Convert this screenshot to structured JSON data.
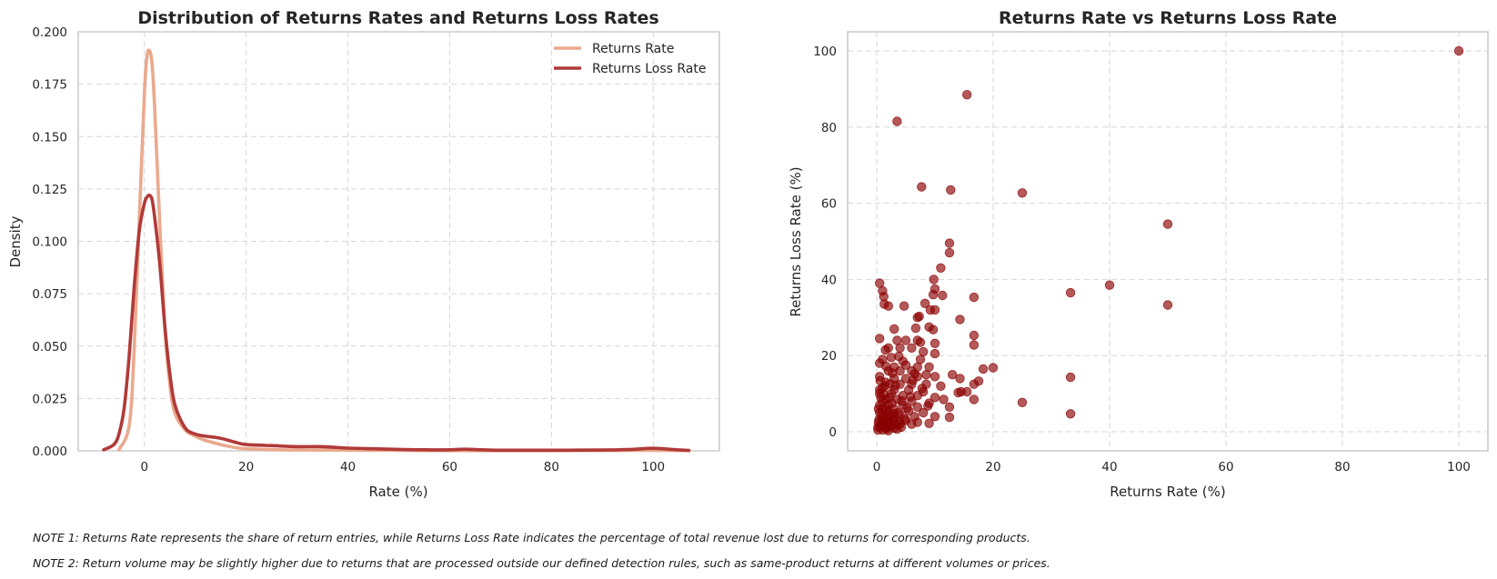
{
  "colors": {
    "returns_rate": "#eaa98e",
    "returns_loss_rate": "#b03a38",
    "scatter_point": "#8b0000",
    "grid": "#d6d6d6",
    "axes_edge": "#cccccc"
  },
  "notes": [
    "NOTE 1: Returns Rate represents the share of return entries, while Returns Loss Rate indicates the percentage of total revenue lost due to returns for corresponding products.",
    "NOTE 2: Return volume may be slightly higher due to returns that are processed outside our defined detection rules, such as same-product returns at different volumes or prices."
  ],
  "chart_data": [
    {
      "type": "line",
      "subtype": "kde",
      "title": "Distribution of Returns Rates and Returns Loss Rates",
      "xlabel": "Rate (%)",
      "ylabel": "Density",
      "xlim": [
        -13,
        113
      ],
      "ylim": [
        0,
        0.2
      ],
      "xticks": [
        0,
        20,
        40,
        60,
        80,
        100
      ],
      "xtick_labels": [
        "0",
        "20",
        "40",
        "60",
        "80",
        "100"
      ],
      "yticks": [
        0,
        0.025,
        0.05,
        0.075,
        0.1,
        0.125,
        0.15,
        0.175,
        0.2
      ],
      "ytick_labels": [
        "0.000",
        "0.025",
        "0.050",
        "0.075",
        "0.100",
        "0.125",
        "0.150",
        "0.175",
        "0.200"
      ],
      "grid": true,
      "legend": "upper-right",
      "series": [
        {
          "name": "Returns Rate",
          "color": "#eaa98e",
          "x": [
            -5,
            -3,
            -2,
            -1,
            0,
            0.5,
            1,
            1.5,
            2,
            3,
            4,
            5,
            6,
            8,
            10,
            12,
            15,
            18,
            20,
            25,
            30,
            40,
            50,
            60,
            80,
            100,
            107
          ],
          "y": [
            0.0005,
            0.012,
            0.048,
            0.11,
            0.17,
            0.188,
            0.191,
            0.185,
            0.165,
            0.11,
            0.06,
            0.032,
            0.018,
            0.01,
            0.007,
            0.005,
            0.003,
            0.0015,
            0.001,
            0.0006,
            0.0004,
            0.0003,
            0.0002,
            0.0001,
            0.0001,
            0.0002,
            0.0001
          ]
        },
        {
          "name": "Returns Loss Rate",
          "color": "#b03a38",
          "x": [
            -8,
            -6,
            -5,
            -4,
            -3,
            -2,
            -1,
            0,
            0.5,
            1,
            1.5,
            2,
            3,
            4,
            5,
            6,
            8,
            10,
            12,
            15,
            18,
            20,
            25,
            30,
            35,
            40,
            45,
            50,
            55,
            60,
            63,
            66,
            70,
            80,
            90,
            95,
            100,
            104,
            107
          ],
          "y": [
            0.0005,
            0.003,
            0.008,
            0.02,
            0.045,
            0.078,
            0.105,
            0.118,
            0.121,
            0.122,
            0.12,
            0.112,
            0.09,
            0.06,
            0.037,
            0.022,
            0.011,
            0.008,
            0.007,
            0.006,
            0.004,
            0.003,
            0.0025,
            0.002,
            0.002,
            0.0013,
            0.001,
            0.0007,
            0.0005,
            0.0005,
            0.0008,
            0.0005,
            0.0003,
            0.0003,
            0.0004,
            0.0006,
            0.0012,
            0.0006,
            0.0002
          ]
        }
      ]
    },
    {
      "type": "scatter",
      "title": "Returns Rate vs Returns Loss Rate",
      "xlabel": "Returns Rate (%)",
      "ylabel": "Returns Loss Rate (%)",
      "xlim": [
        -5,
        105
      ],
      "ylim": [
        -5,
        105
      ],
      "xticks": [
        0,
        20,
        40,
        60,
        80,
        100
      ],
      "xtick_labels": [
        "0",
        "20",
        "40",
        "60",
        "80",
        "100"
      ],
      "yticks": [
        0,
        20,
        40,
        60,
        80,
        100
      ],
      "ytick_labels": [
        "0",
        "20",
        "40",
        "60",
        "80",
        "100"
      ],
      "grid": true,
      "point_color": "#8b0000",
      "points": [
        [
          100,
          100
        ],
        [
          15.5,
          88.5
        ],
        [
          3.5,
          81.5
        ],
        [
          7.7,
          64.3
        ],
        [
          12.7,
          63.5
        ],
        [
          25,
          62.7
        ],
        [
          50,
          54.5
        ],
        [
          12.5,
          49.5
        ],
        [
          12.5,
          47
        ],
        [
          11,
          43
        ],
        [
          40,
          38.5
        ],
        [
          33.3,
          36.5
        ],
        [
          50,
          33.3
        ],
        [
          0.5,
          39
        ],
        [
          1,
          37
        ],
        [
          1.2,
          35.5
        ],
        [
          2,
          33
        ],
        [
          1.3,
          33.5
        ],
        [
          4.7,
          33
        ],
        [
          9.8,
          40
        ],
        [
          10,
          37.5
        ],
        [
          9.7,
          36
        ],
        [
          11.3,
          35.8
        ],
        [
          16.7,
          35.3
        ],
        [
          8.3,
          33.7
        ],
        [
          9.2,
          32
        ],
        [
          10,
          32
        ],
        [
          7,
          30
        ],
        [
          7.3,
          30.3
        ],
        [
          14.3,
          29.5
        ],
        [
          3,
          27
        ],
        [
          6.7,
          27.2
        ],
        [
          9,
          27.5
        ],
        [
          9.7,
          26.8
        ],
        [
          16.7,
          25.3
        ],
        [
          0.5,
          24.5
        ],
        [
          3.5,
          24
        ],
        [
          5,
          24
        ],
        [
          7,
          24
        ],
        [
          7.5,
          23.5
        ],
        [
          10,
          23.2
        ],
        [
          16.7,
          22.8
        ],
        [
          1.5,
          21.5
        ],
        [
          2,
          22
        ],
        [
          4,
          22
        ],
        [
          6,
          22
        ],
        [
          8,
          21
        ],
        [
          10,
          20.5
        ],
        [
          1,
          19
        ],
        [
          2.5,
          19.5
        ],
        [
          4.5,
          18.5
        ],
        [
          7.5,
          19
        ],
        [
          0.5,
          18
        ],
        [
          3,
          17
        ],
        [
          5,
          17.5
        ],
        [
          7,
          17
        ],
        [
          9,
          17
        ],
        [
          20,
          16.8
        ],
        [
          18.3,
          16.5
        ],
        [
          2,
          16
        ],
        [
          4,
          16
        ],
        [
          6,
          16
        ],
        [
          8.5,
          15
        ],
        [
          13,
          15
        ],
        [
          0.5,
          14.5
        ],
        [
          3,
          14
        ],
        [
          5,
          14
        ],
        [
          7,
          14.5
        ],
        [
          10,
          14.5
        ],
        [
          14.3,
          14
        ],
        [
          17.5,
          13.3
        ],
        [
          33.3,
          14.3
        ],
        [
          1.5,
          13
        ],
        [
          4,
          12.5
        ],
        [
          6,
          12.5
        ],
        [
          8.5,
          12.5
        ],
        [
          11,
          12
        ],
        [
          16.7,
          12.5
        ],
        [
          1,
          11.5
        ],
        [
          3,
          11
        ],
        [
          5.5,
          11
        ],
        [
          8,
          10.5
        ],
        [
          14,
          10.3
        ],
        [
          14.5,
          10.5
        ],
        [
          15.5,
          10.5
        ],
        [
          0.5,
          10
        ],
        [
          2.5,
          10
        ],
        [
          4.5,
          9.5
        ],
        [
          7,
          9.5
        ],
        [
          10,
          9
        ],
        [
          16.7,
          8.5
        ],
        [
          1.5,
          8.5
        ],
        [
          3.5,
          8.5
        ],
        [
          6,
          8
        ],
        [
          9,
          7.5
        ],
        [
          25,
          7.7
        ],
        [
          0.5,
          7
        ],
        [
          2,
          7
        ],
        [
          4.5,
          7
        ],
        [
          7,
          6.5
        ],
        [
          12.5,
          6.5
        ],
        [
          1,
          6
        ],
        [
          3,
          6
        ],
        [
          5.5,
          5.5
        ],
        [
          8,
          5
        ],
        [
          33.3,
          4.7
        ],
        [
          0.5,
          5
        ],
        [
          2,
          4.5
        ],
        [
          4,
          4.5
        ],
        [
          6.5,
          4
        ],
        [
          10,
          4
        ],
        [
          12.5,
          3.8
        ],
        [
          1,
          3.5
        ],
        [
          3,
          3.5
        ],
        [
          5,
          3
        ],
        [
          7,
          2.5
        ],
        [
          9,
          2.2
        ],
        [
          0.3,
          2.5
        ],
        [
          2,
          2.5
        ],
        [
          4,
          2
        ],
        [
          6,
          2
        ],
        [
          0.5,
          1.5
        ],
        [
          1.5,
          1
        ],
        [
          3,
          1
        ],
        [
          0.2,
          0.5
        ],
        [
          1,
          0.5
        ],
        [
          2,
          0.3
        ],
        [
          0.5,
          11
        ],
        [
          1,
          8
        ],
        [
          1.5,
          6
        ],
        [
          2,
          5.5
        ],
        [
          2.5,
          4
        ],
        [
          1.2,
          3
        ],
        [
          1.8,
          2
        ],
        [
          0.8,
          2
        ],
        [
          2.8,
          3
        ],
        [
          3.3,
          2
        ],
        [
          0.3,
          6
        ],
        [
          0.7,
          9
        ],
        [
          1.4,
          12
        ],
        [
          2.2,
          9
        ],
        [
          2.6,
          7.5
        ],
        [
          3.7,
          5
        ],
        [
          0.2,
          1.2
        ],
        [
          1.7,
          0.8
        ],
        [
          2.4,
          1.5
        ],
        [
          3.5,
          0.7
        ],
        [
          4.2,
          1.2
        ],
        [
          0.9,
          4.2
        ],
        [
          1.9,
          3.6
        ],
        [
          2.9,
          4.8
        ],
        [
          0.4,
          3.2
        ],
        [
          1.1,
          1.6
        ],
        [
          2.1,
          1.9
        ],
        [
          3.9,
          2.6
        ],
        [
          4.8,
          3.4
        ],
        [
          5.2,
          6.2
        ],
        [
          1.3,
          9.8
        ],
        [
          2.3,
          12.6
        ],
        [
          0.6,
          13.4
        ],
        [
          3.2,
          12.2
        ],
        [
          2.7,
          15.4
        ],
        [
          1.6,
          17.2
        ],
        [
          3.8,
          19.8
        ],
        [
          6.2,
          13.5
        ],
        [
          5.8,
          9.2
        ],
        [
          4.3,
          8.1
        ],
        [
          7.8,
          11.4
        ],
        [
          8.8,
          6.8
        ],
        [
          11.5,
          8.5
        ],
        [
          6.5,
          15.2
        ]
      ]
    }
  ]
}
